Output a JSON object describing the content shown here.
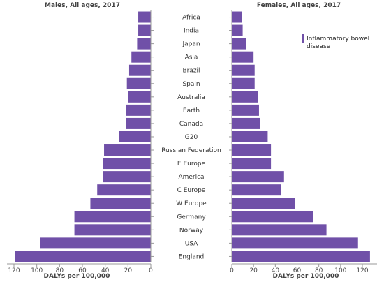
{
  "chart_data": {
    "type": "bar",
    "orientation": "horizontal-pyramid",
    "categories": [
      "Africa",
      "India",
      "Japan",
      "Asia",
      "Brazil",
      "Spain",
      "Australia",
      "Earth",
      "Canada",
      "G20",
      "Russian Federation",
      "E Europe",
      "America",
      "C Europe",
      "W Europe",
      "Germany",
      "Norway",
      "USA",
      "England"
    ],
    "series": [
      {
        "panel": "left",
        "title": "Males, All ages, 2017",
        "values": [
          11,
          11,
          12,
          17,
          19,
          21,
          20,
          22,
          22,
          28,
          41,
          42,
          42,
          47,
          53,
          67,
          67,
          97,
          119
        ]
      },
      {
        "panel": "right",
        "title": "Females, All ages, 2017",
        "values": [
          9,
          10,
          13,
          20,
          21,
          21,
          24,
          25,
          26,
          33,
          36,
          36,
          48,
          45,
          58,
          75,
          87,
          116,
          127
        ]
      }
    ],
    "legend": {
      "label": "Inflammatory bowel disease",
      "position": "top-right"
    },
    "xlabel": "DALYs per 100,000",
    "xlim": [
      0,
      127
    ],
    "xticks": [
      0,
      20,
      40,
      60,
      80,
      100,
      120
    ],
    "bar_color": "#7050a8"
  }
}
